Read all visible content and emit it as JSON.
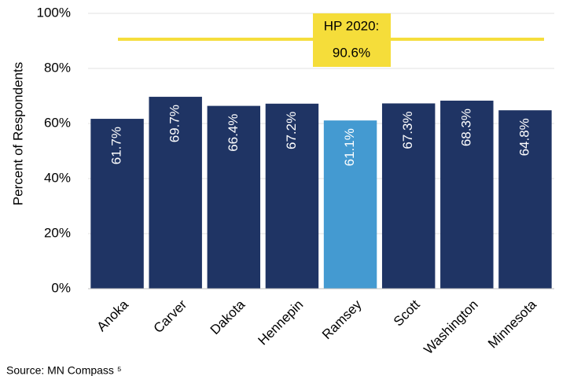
{
  "chart_data": {
    "type": "bar",
    "y_label": "Percent of Respondents",
    "categories": [
      "Anoka",
      "Carver",
      "Dakota",
      "Hennepin",
      "Ramsey",
      "Scott",
      "Washington",
      "Minnesota"
    ],
    "values": [
      61.7,
      69.7,
      66.4,
      67.2,
      61.1,
      67.3,
      68.3,
      64.8
    ],
    "value_labels": [
      "61.7%",
      "69.7%",
      "66.4%",
      "67.2%",
      "61.1%",
      "67.3%",
      "68.3%",
      "64.8%"
    ],
    "colors": [
      "#1f3464",
      "#1f3464",
      "#1f3464",
      "#1f3464",
      "#449ad1",
      "#1f3464",
      "#1f3464",
      "#1f3464"
    ],
    "ylim": [
      0,
      100
    ],
    "yticks": [
      {
        "value": 0,
        "label": "0%"
      },
      {
        "value": 20,
        "label": "20%"
      },
      {
        "value": 40,
        "label": "40%"
      },
      {
        "value": 60,
        "label": "60%"
      },
      {
        "value": 80,
        "label": "80%"
      },
      {
        "value": 100,
        "label": "100%"
      }
    ],
    "grid": true,
    "target": {
      "label": "HP 2020:",
      "value": 90.6,
      "value_label": "90.6%",
      "color": "#f5dd3a"
    },
    "source": "Source: MN Compass ⁵"
  }
}
